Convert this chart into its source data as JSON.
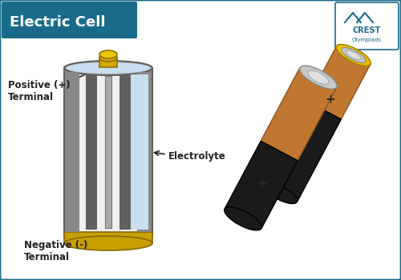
{
  "title": "Electric Cell",
  "title_bg_color": "#1a6b8a",
  "title_text_color": "#ffffff",
  "border_color": "#1a6b8a",
  "bg_color": "#ffffff",
  "labels": {
    "positive": "Positive (+)\nTerminal",
    "negative": "Negative (-)\nTerminal",
    "electrolyte": "Electrolyte"
  },
  "label_fontsize": 8.5,
  "label_color": "#222222",
  "cell_colors": {
    "outer_gray": "#909090",
    "outer_dark": "#606060",
    "inner_gray": "#b0b0b0",
    "inner_light": "#d0d0d0",
    "electrolyte_blue": "#c8dff0",
    "gold": "#c8a000",
    "gold_dark": "#8a6800",
    "pos_terminal": "#d4a800",
    "center_rod": "#aaaaaa",
    "separator": "#888888",
    "top_rim": "#888888"
  },
  "battery_colors": {
    "copper": "#c07830",
    "copper_dark": "#8a5520",
    "black": "#1a1a1a",
    "silver": "#c8c8c8",
    "silver_inner": "#e0e0e0",
    "yellow_ring": "#e8c000",
    "yellow_dark": "#a08000"
  }
}
